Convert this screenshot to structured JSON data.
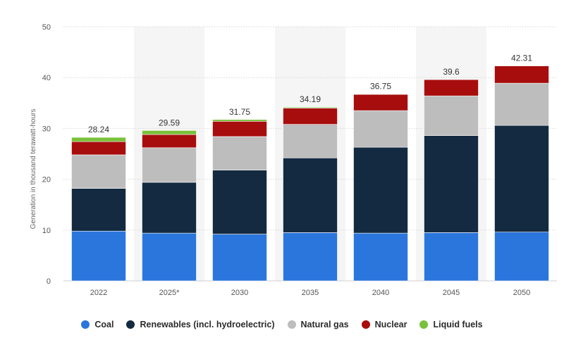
{
  "chart_data": {
    "type": "bar",
    "stacked": true,
    "categories": [
      "2022",
      "2025*",
      "2030",
      "2035",
      "2040",
      "2045",
      "2050"
    ],
    "series": [
      {
        "name": "Coal",
        "color": "#2b76dc",
        "values": [
          9.8,
          9.4,
          9.2,
          9.5,
          9.4,
          9.5,
          9.6
        ]
      },
      {
        "name": "Renewables (incl. hydroelectric)",
        "color": "#132a41",
        "values": [
          8.4,
          10.0,
          12.6,
          14.7,
          16.9,
          19.1,
          21.0
        ]
      },
      {
        "name": "Natural gas",
        "color": "#bdbdbd",
        "values": [
          6.6,
          6.8,
          6.6,
          6.6,
          7.2,
          7.8,
          8.3
        ]
      },
      {
        "name": "Nuclear",
        "color": "#a70d0d",
        "values": [
          2.6,
          2.6,
          3.0,
          3.2,
          3.2,
          3.2,
          3.4
        ]
      },
      {
        "name": "Liquid fuels",
        "color": "#7ac13a",
        "values": [
          0.84,
          0.79,
          0.35,
          0.19,
          0.05,
          0.0,
          0.01
        ]
      }
    ],
    "totals": [
      "28.24",
      "29.59",
      "31.75",
      "34.19",
      "36.75",
      "39.6",
      "42.31"
    ],
    "ylabel": "Generation in thousand terawatt-hours",
    "xlabel": "",
    "title": "",
    "ylim": [
      0,
      50
    ],
    "yticks": [
      0,
      10,
      20,
      30,
      40,
      50
    ],
    "grid": true,
    "legend_position": "bottom"
  }
}
